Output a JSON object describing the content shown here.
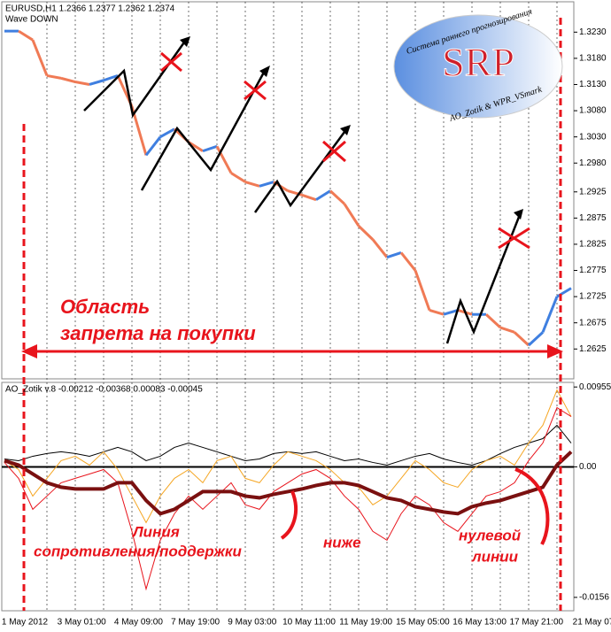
{
  "chart_data": [
    {
      "type": "line",
      "title": "EURUSD,H1  1.2366 1.2377 1.2362 1.2374",
      "subtitle": "Wave DOWN",
      "up_color": "#3f7fe0",
      "down_color": "#f07a55",
      "values": [
        1.3232,
        1.3232,
        1.3215,
        1.3147,
        1.3142,
        1.3135,
        1.313,
        1.3138,
        1.3147,
        1.3088,
        1.2995,
        1.303,
        1.3045,
        1.302,
        1.3003,
        1.3012,
        1.2961,
        1.2944,
        1.2936,
        1.2944,
        1.2927,
        1.2919,
        1.291,
        1.2927,
        1.2902,
        1.286,
        1.2834,
        1.28,
        1.2809,
        1.2775,
        1.2699,
        1.2691,
        1.2699,
        1.2691,
        1.2691,
        1.2666,
        1.2657,
        1.2632,
        1.2657,
        1.2725,
        1.2741
      ],
      "ylim": [
        1.2568,
        1.3288
      ],
      "yticks": [
        {
          "value": 1.323,
          "label": "1.3230"
        },
        {
          "value": 1.318,
          "label": "1.3180"
        },
        {
          "value": 1.313,
          "label": "1.3130"
        },
        {
          "value": 1.308,
          "label": "1.3080"
        },
        {
          "value": 1.303,
          "label": "1.3030"
        },
        {
          "value": 1.298,
          "label": "1.2980"
        },
        1.2925,
        1.2875,
        1.2825,
        1.2775,
        1.2725,
        1.2675,
        1.2625
      ],
      "annotations": [
        "Область",
        "запрета на покупки"
      ],
      "logo": {
        "title": "SRP",
        "arc": "Система раннего прогнозирования",
        "footer": "AO_Zotik & WPR_VSmark"
      }
    },
    {
      "type": "line",
      "title": "AO_Zotik v.8  -0.00212 -0.00368 0.00083 -0.00045",
      "ylim": [
        -0.0172,
        0.0101
      ],
      "yticks": [
        0.00955,
        {
          "value": 0,
          "label": "0.00"
        },
        -0.0156
      ],
      "series": [
        {
          "color": "#000000",
          "width": 1,
          "values": [
            0.00095,
            0.00074,
            0.00127,
            0.00159,
            0.0018,
            0.00159,
            0.00127,
            0.0018,
            0.00233,
            0.0018,
            0.00074,
            0.00127,
            0.00233,
            0.00285,
            0.00233,
            0.0018,
            0.00127,
            0.00074,
            0.00095,
            0.00159,
            0.0018,
            0.00159,
            0.0018,
            0.00127,
            0.00074,
            0.00095,
            0.00053,
            0.00021,
            0.00074,
            0.00127,
            0.00159,
            0.00095,
            0.00053,
            0.00021,
            0.00074,
            0.00159,
            0.00233,
            0.00285,
            0.00338,
            0.00497,
            0.00285
          ]
        },
        {
          "color": "#f5a623",
          "width": 1,
          "values": [
            0.00074,
            -0.00032,
            -0.00349,
            -0.00137,
            0.00074,
            0.00127,
            0.00021,
            0.0018,
            -0.00032,
            -0.00349,
            -0.00666,
            -0.00349,
            -0.00137,
            -0.00032,
            -0.0019,
            0.00074,
            0.00127,
            -0.00137,
            -0.0019,
            0.00021,
            0.0018,
            0.00127,
            0.00074,
            -0.00032,
            -0.0019,
            -0.00243,
            -0.00454,
            -0.00349,
            -0.00137,
            0.00074,
            -0.00032,
            -0.0019,
            -0.00243,
            -0.00032,
            0.00074,
            0.00127,
            0.00021,
            0.00285,
            0.00497,
            0.0092,
            0.00602
          ]
        },
        {
          "color": "#e8141c",
          "width": 1,
          "values": [
            0.00053,
            -0.00137,
            -0.00507,
            -0.00349,
            -0.0019,
            -0.00137,
            -0.00085,
            -0.00032,
            -0.0019,
            -0.00771,
            -0.0146,
            -0.00877,
            -0.0056,
            -0.00349,
            -0.00507,
            -0.00349,
            -0.0019,
            -0.00454,
            -0.00507,
            -0.00296,
            -0.0019,
            -0.00085,
            -0.00032,
            -0.00137,
            -0.00349,
            -0.00507,
            -0.00771,
            -0.00877,
            -0.0056,
            -0.00349,
            -0.00454,
            -0.00666,
            -0.00771,
            -0.0056,
            -0.00349,
            -0.00296,
            -0.0019,
            0.00074,
            0.00285,
            0.00708,
            0.00602
          ]
        },
        {
          "color": "#7a1010",
          "width": 4,
          "values": [
            0.00074,
            0.00021,
            -0.00085,
            -0.0019,
            -0.00243,
            -0.00264,
            -0.00264,
            -0.00264,
            -0.0019,
            -0.0019,
            -0.00402,
            -0.0056,
            -0.00507,
            -0.00402,
            -0.00296,
            -0.00296,
            -0.00296,
            -0.00349,
            -0.0037,
            -0.00328,
            -0.00296,
            -0.00264,
            -0.00222,
            -0.0019,
            -0.0019,
            -0.00222,
            -0.00296,
            -0.0037,
            -0.00402,
            -0.00476,
            -0.00507,
            -0.00539,
            -0.0056,
            -0.00476,
            -0.00433,
            -0.00402,
            -0.00349,
            -0.00296,
            -0.00243,
            0.00021,
            0.0018
          ]
        }
      ],
      "x_labels": [
        "1 May 2012",
        "3 May 01:00",
        "4 May 09:00",
        "7 May 19:00",
        "9 May 03:00",
        "10 May 11:00",
        "11 May 19:00",
        "15 May 05:00",
        "16 May 13:00",
        "17 May 21:00",
        "21 May 07"
      ],
      "annotations": [
        "Линия",
        "сопротивления/поддержки",
        "ниже",
        "нулевой",
        "линии"
      ]
    }
  ]
}
